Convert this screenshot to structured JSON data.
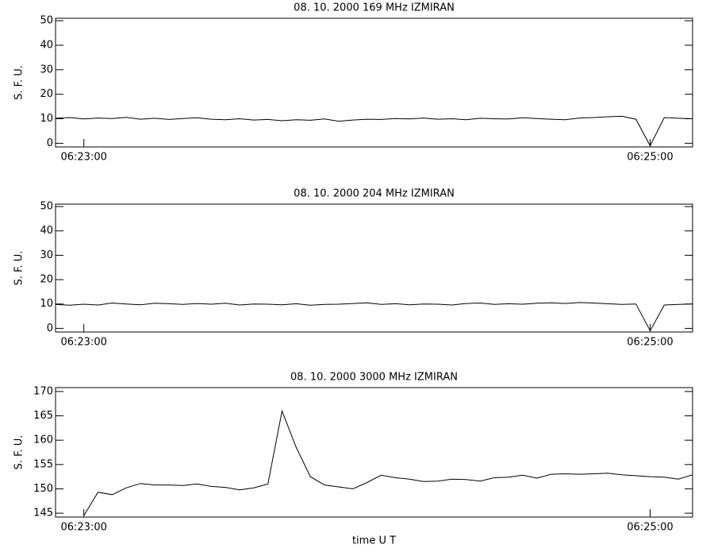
{
  "chart_data": [
    {
      "type": "line",
      "title": "08.  10.  2000   169 MHz   IZMIRAN",
      "ylabel": "S. F. U.",
      "x": [
        "06:22:54",
        "06:22:57",
        "06:23:00",
        "06:23:03",
        "06:23:06",
        "06:23:09",
        "06:23:12",
        "06:23:15",
        "06:23:18",
        "06:23:21",
        "06:23:24",
        "06:23:27",
        "06:23:30",
        "06:23:33",
        "06:23:36",
        "06:23:39",
        "06:23:42",
        "06:23:45",
        "06:23:48",
        "06:23:51",
        "06:23:54",
        "06:23:57",
        "06:24:00",
        "06:24:03",
        "06:24:06",
        "06:24:09",
        "06:24:12",
        "06:24:15",
        "06:24:18",
        "06:24:21",
        "06:24:24",
        "06:24:27",
        "06:24:30",
        "06:24:33",
        "06:24:36",
        "06:24:39",
        "06:24:42",
        "06:24:45",
        "06:24:48",
        "06:24:51",
        "06:24:54",
        "06:24:57",
        "06:25:00",
        "06:25:03",
        "06:25:06",
        "06:25:09"
      ],
      "values": [
        10.2,
        10.5,
        9.9,
        10.3,
        10.1,
        10.6,
        9.8,
        10.2,
        9.7,
        10.1,
        10.4,
        9.8,
        9.6,
        10.0,
        9.5,
        9.7,
        9.2,
        9.6,
        9.4,
        9.9,
        9.0,
        9.5,
        9.8,
        9.7,
        10.1,
        9.9,
        10.3,
        9.8,
        10.0,
        9.6,
        10.2,
        10.0,
        9.9,
        10.4,
        10.1,
        9.8,
        9.6,
        10.3,
        10.5,
        10.8,
        11.0,
        9.8,
        -1,
        10.5,
        10.2,
        10.0
      ],
      "xlim": [
        "06:22:54",
        "06:25:09"
      ],
      "xticks": [
        "06:23:00",
        "06:25:00"
      ],
      "ylim": [
        -1.5,
        51
      ],
      "yticks": [
        0,
        10,
        20,
        30,
        40,
        50
      ]
    },
    {
      "type": "line",
      "title": "08.  10.  2000   204 MHz   IZMIRAN",
      "ylabel": "S. F. U.",
      "x": [
        "06:22:54",
        "06:22:57",
        "06:23:00",
        "06:23:03",
        "06:23:06",
        "06:23:09",
        "06:23:12",
        "06:23:15",
        "06:23:18",
        "06:23:21",
        "06:23:24",
        "06:23:27",
        "06:23:30",
        "06:23:33",
        "06:23:36",
        "06:23:39",
        "06:23:42",
        "06:23:45",
        "06:23:48",
        "06:23:51",
        "06:23:54",
        "06:23:57",
        "06:24:00",
        "06:24:03",
        "06:24:06",
        "06:24:09",
        "06:24:12",
        "06:24:15",
        "06:24:18",
        "06:24:21",
        "06:24:24",
        "06:24:27",
        "06:24:30",
        "06:24:33",
        "06:24:36",
        "06:24:39",
        "06:24:42",
        "06:24:45",
        "06:24:48",
        "06:24:51",
        "06:24:54",
        "06:24:57",
        "06:25:00",
        "06:25:03",
        "06:25:06",
        "06:25:09"
      ],
      "values": [
        9.8,
        9.5,
        9.9,
        9.6,
        10.4,
        10.0,
        9.7,
        10.3,
        10.1,
        9.8,
        10.2,
        9.9,
        10.3,
        9.6,
        10.0,
        9.9,
        9.7,
        10.1,
        9.5,
        9.8,
        9.9,
        10.2,
        10.5,
        9.8,
        10.1,
        9.7,
        10.0,
        9.9,
        9.6,
        10.2,
        10.4,
        9.8,
        10.1,
        9.9,
        10.3,
        10.5,
        10.2,
        10.6,
        10.4,
        10.1,
        9.8,
        10.0,
        -1,
        9.6,
        9.8,
        10.0
      ],
      "xlim": [
        "06:22:54",
        "06:25:09"
      ],
      "xticks": [
        "06:23:00",
        "06:25:00"
      ],
      "ylim": [
        -1.5,
        51
      ],
      "yticks": [
        0,
        10,
        20,
        30,
        40,
        50
      ]
    },
    {
      "type": "line",
      "title": "08.  10.  2000   3000 MHz   IZMIRAN",
      "ylabel": "S. F. U.",
      "xlabel": "time   U T",
      "x": [
        "06:23:00",
        "06:23:03",
        "06:23:06",
        "06:23:09",
        "06:23:12",
        "06:23:15",
        "06:23:18",
        "06:23:21",
        "06:23:24",
        "06:23:27",
        "06:23:30",
        "06:23:33",
        "06:23:36",
        "06:23:39",
        "06:23:42",
        "06:23:45",
        "06:23:48",
        "06:23:51",
        "06:23:54",
        "06:23:57",
        "06:24:00",
        "06:24:03",
        "06:24:06",
        "06:24:09",
        "06:24:12",
        "06:24:15",
        "06:24:18",
        "06:24:21",
        "06:24:24",
        "06:24:27",
        "06:24:30",
        "06:24:33",
        "06:24:36",
        "06:24:39",
        "06:24:42",
        "06:24:45",
        "06:24:48",
        "06:24:51",
        "06:24:54",
        "06:24:57",
        "06:25:00",
        "06:25:03",
        "06:25:06",
        "06:25:09"
      ],
      "values": [
        144.5,
        149.3,
        148.8,
        150.2,
        151.1,
        150.8,
        150.8,
        150.7,
        151.0,
        150.5,
        150.3,
        149.8,
        150.2,
        151.0,
        166.0,
        158.5,
        152.5,
        150.8,
        150.4,
        150.0,
        151.3,
        152.8,
        152.3,
        152.0,
        151.5,
        151.6,
        152.0,
        151.9,
        151.6,
        152.3,
        152.4,
        152.8,
        152.2,
        153.0,
        153.1,
        153.0,
        153.1,
        153.2,
        152.9,
        152.7,
        152.5,
        152.4,
        152.0,
        152.9
      ],
      "xlim": [
        "06:22:54",
        "06:25:09"
      ],
      "xticks": [
        "06:23:00",
        "06:25:00"
      ],
      "ylim": [
        144.2,
        170.8
      ],
      "yticks": [
        145,
        150,
        155,
        160,
        165,
        170
      ]
    }
  ]
}
